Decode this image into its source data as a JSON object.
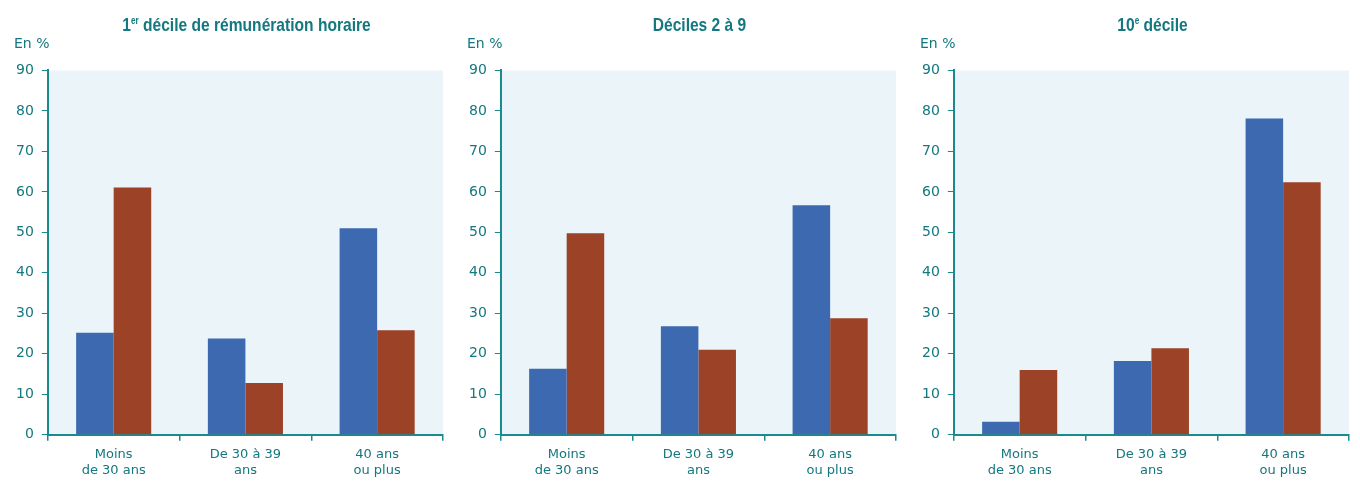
{
  "chart_data": [
    {
      "type": "bar",
      "title": "1$^{er}$ décile de rémunération horaire",
      "ylabel": "En %",
      "categories": [
        "Moins\nde 30 ans",
        "De 30 à 39\nans",
        "40 ans\nou plus"
      ],
      "series": [
        {
          "color": "#3d69b0",
          "values": [
            25.2,
            23.8,
            51
          ]
        },
        {
          "color": "#9c4226",
          "values": [
            61.1,
            12.8,
            25.8
          ]
        }
      ],
      "ylim": [
        0,
        90
      ],
      "yticks": [
        0,
        10,
        20,
        30,
        40,
        50,
        60,
        70,
        80,
        90
      ],
      "grid": false
    },
    {
      "type": "bar",
      "title": "Déciles 2 à 9",
      "ylabel": "En %",
      "categories": [
        "Moins\nde 30 ans",
        "De 30 à 39\nans",
        "40 ans\nou plus"
      ],
      "series": [
        {
          "color": "#3d69b0",
          "values": [
            16.3,
            26.8,
            56.7
          ]
        },
        {
          "color": "#9c4226",
          "values": [
            49.8,
            21,
            28.8
          ]
        }
      ],
      "ylim": [
        0,
        90
      ],
      "yticks": [
        0,
        10,
        20,
        30,
        40,
        50,
        60,
        70,
        80,
        90
      ],
      "grid": false
    },
    {
      "type": "bar",
      "title": "10$^{e}$ décile",
      "ylabel": "En %",
      "categories": [
        "Moins\nde 30 ans",
        "De 30 à 39\nans",
        "40 ans\nou plus"
      ],
      "series": [
        {
          "color": "#3d69b0",
          "values": [
            3.2,
            18.2,
            78.1
          ]
        },
        {
          "color": "#9c4226",
          "values": [
            16,
            21.4,
            62.4
          ]
        }
      ],
      "ylim": [
        0,
        90
      ],
      "yticks": [
        0,
        10,
        20,
        30,
        40,
        50,
        60,
        70,
        80,
        90
      ],
      "grid": false
    }
  ]
}
